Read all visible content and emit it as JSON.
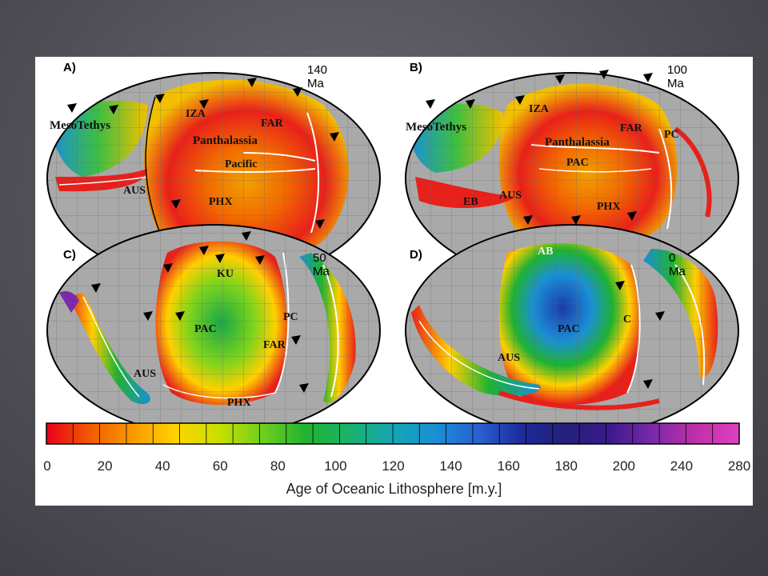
{
  "panels": [
    {
      "letter": "A)",
      "age": "140 Ma",
      "labels": [
        "MesoTethys",
        "IZA",
        "FAR",
        "Panthalassia",
        "Pacific",
        "AUS",
        "PHX"
      ]
    },
    {
      "letter": "B)",
      "age": "100 Ma",
      "labels": [
        "MesoTethys",
        "IZA",
        "FAR",
        "PC",
        "Panthalassia",
        "PAC",
        "EB",
        "AUS",
        "PHX"
      ]
    },
    {
      "letter": "C)",
      "age": "50 Ma",
      "labels": [
        "KU",
        "PAC",
        "PC",
        "FAR",
        "AUS",
        "PHX"
      ]
    },
    {
      "letter": "D)",
      "age": "0 Ma",
      "labels": [
        "AB",
        "PAC",
        "C",
        "AUS"
      ]
    }
  ],
  "colorbar": {
    "title": "Age of Oceanic Lithosphere [m.y.]",
    "ticks": [
      "0",
      "20",
      "40",
      "60",
      "80",
      "100",
      "120",
      "140",
      "160",
      "180",
      "200",
      "240",
      "280"
    ],
    "colors": [
      "#e8001a",
      "#f25a00",
      "#fa9a00",
      "#ffd400",
      "#c8e000",
      "#6fcf1c",
      "#1fb330",
      "#1ab36b",
      "#14a6b4",
      "#1a8fd6",
      "#2a5fd0",
      "#1d2a9a",
      "#23207a",
      "#3a1a8a",
      "#7a2aa8",
      "#c030a8",
      "#e040c0"
    ]
  },
  "colors": {
    "land": "#a9a9a9",
    "ocean_young": "#e8001a",
    "ocean_old": "#1d2a9a",
    "ridge": "#ffffff",
    "coast": "#000000"
  }
}
